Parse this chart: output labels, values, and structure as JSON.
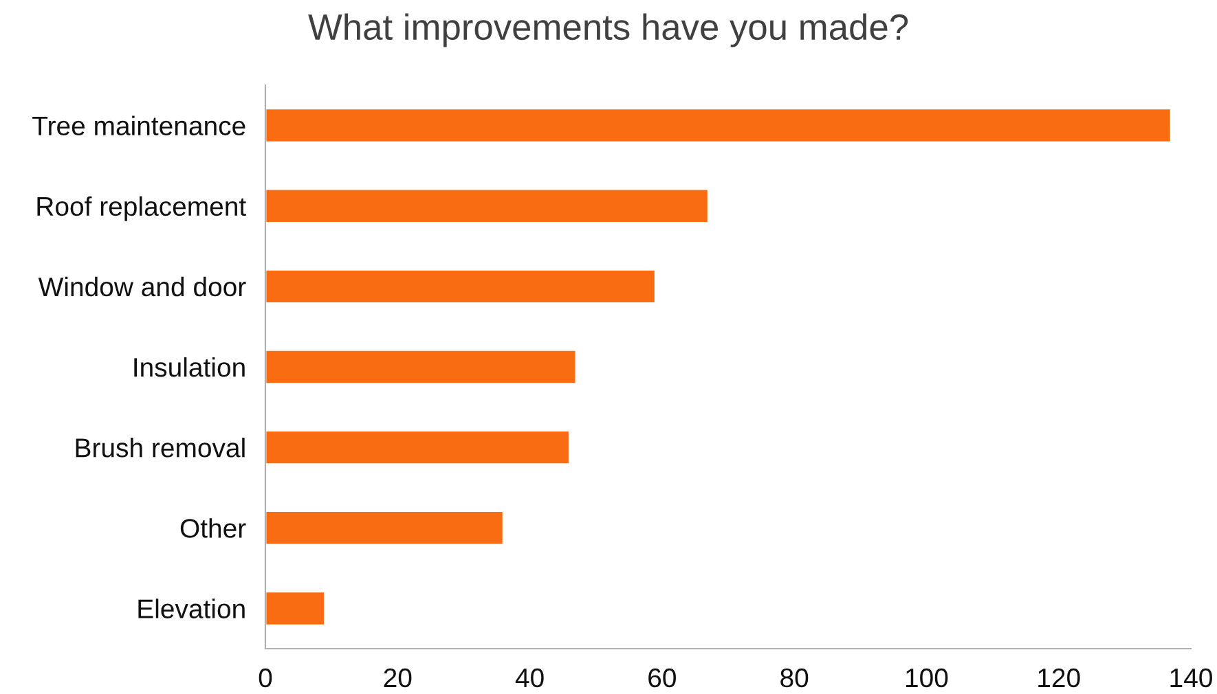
{
  "chart_data": {
    "type": "bar",
    "orientation": "horizontal",
    "title": "What improvements have you made?",
    "categories": [
      "Tree maintenance",
      "Roof replacement",
      "Window and door",
      "Insulation",
      "Brush removal",
      "Other",
      "Elevation"
    ],
    "values": [
      137,
      67,
      59,
      47,
      46,
      36,
      9
    ],
    "color": "#fa6c12",
    "xlim": [
      0,
      140
    ],
    "xticks": [
      0,
      20,
      40,
      60,
      80,
      100,
      120,
      140
    ],
    "grid": false,
    "legend": false
  }
}
